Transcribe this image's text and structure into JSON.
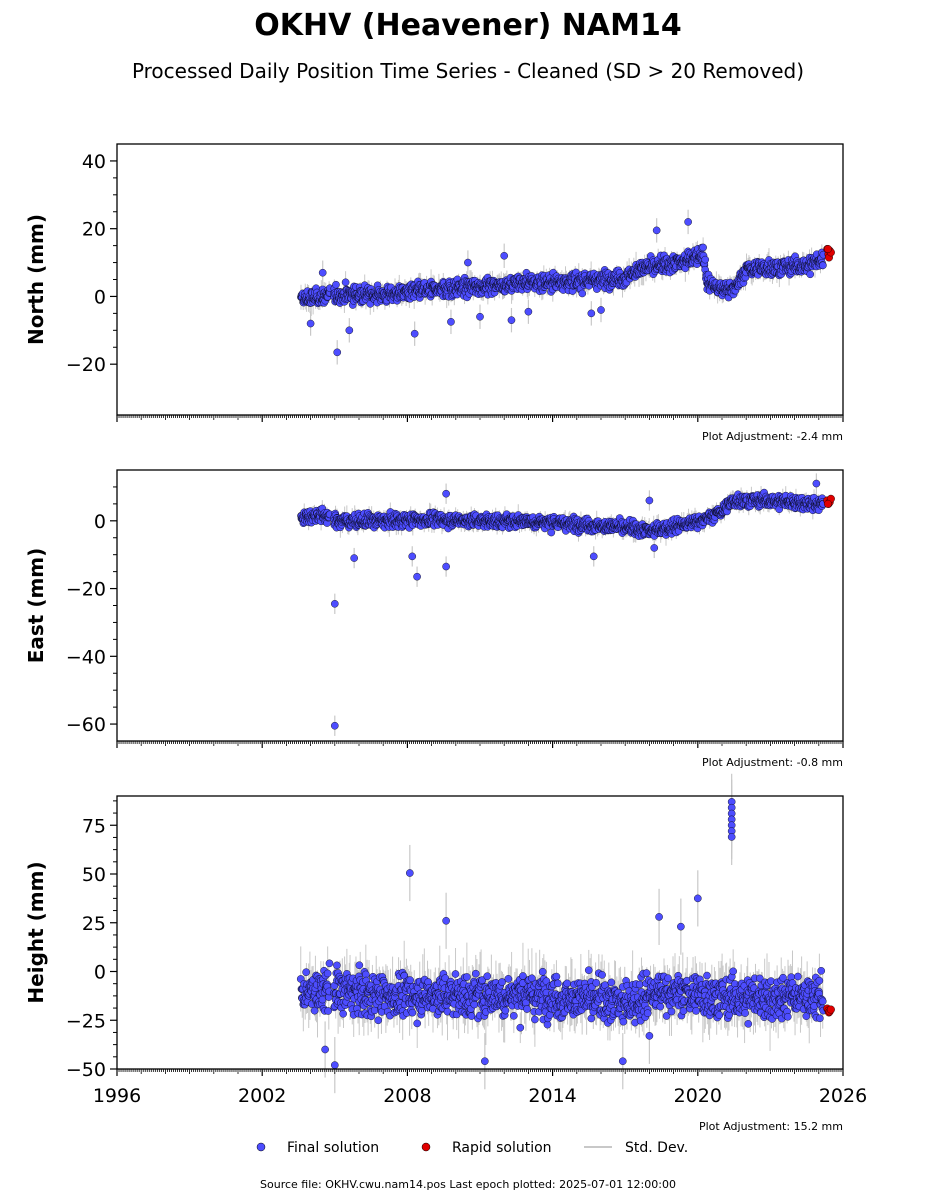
{
  "title": "OKHV (Heavener) NAM14",
  "subtitle": "Processed Daily Position Time Series - Cleaned (SD > 20 Removed)",
  "source_note": "Source file: OKHV.cwu.nam14.pos  Last epoch plotted: 2025-07-01 12:00:00",
  "legend": {
    "final": "Final solution",
    "rapid": "Rapid solution",
    "std": "Std. Dev."
  },
  "colors": {
    "final": "#4d4dff",
    "rapid": "#e00000",
    "std": "#c8c8c8",
    "edge": "#000000"
  },
  "chart_data": [
    {
      "type": "scatter",
      "ylabel": "North (mm)",
      "adjustment": "Plot Adjustment: -2.4 mm",
      "xlim": [
        1996,
        2026
      ],
      "ylim": [
        -35,
        45
      ],
      "yticks": [
        -20,
        0,
        20,
        40
      ],
      "ytick_labels": [
        "−20",
        "0",
        "20",
        "40"
      ],
      "series": [
        {
          "name": "Final solution",
          "trend": [
            [
              2003.6,
              -1
            ],
            [
              2005.0,
              0.5
            ],
            [
              2007.0,
              0.5
            ],
            [
              2009.0,
              2
            ],
            [
              2011.0,
              3
            ],
            [
              2013.0,
              4
            ],
            [
              2015.0,
              4.5
            ],
            [
              2017.0,
              5.5
            ],
            [
              2017.5,
              8
            ],
            [
              2018.5,
              9
            ],
            [
              2019.5,
              10.5
            ],
            [
              2020.2,
              13
            ],
            [
              2020.4,
              4
            ],
            [
              2021.0,
              2
            ],
            [
              2021.6,
              3
            ],
            [
              2022.0,
              8
            ],
            [
              2023.0,
              8.5
            ],
            [
              2024.5,
              9
            ],
            [
              2025.2,
              11
            ]
          ],
          "outliers": [
            [
              2005.1,
              -16.5
            ],
            [
              2005.6,
              -10
            ],
            [
              2008.3,
              -11
            ],
            [
              2009.8,
              -7.5
            ],
            [
              2012.3,
              -7
            ],
            [
              2013.0,
              -4.5
            ],
            [
              2015.6,
              -5
            ],
            [
              2016.0,
              -4
            ],
            [
              2018.3,
              19.5
            ],
            [
              2019.6,
              22
            ],
            [
              2010.5,
              10
            ],
            [
              2012.0,
              12
            ],
            [
              2011.0,
              -6
            ],
            [
              2004.0,
              -8
            ],
            [
              2004.5,
              7
            ]
          ]
        },
        {
          "name": "Rapid solution",
          "points": [
            [
              2025.35,
              14
            ],
            [
              2025.4,
              12.5
            ],
            [
              2025.42,
              11.5
            ],
            [
              2025.45,
              13.5
            ],
            [
              2025.5,
              13
            ],
            [
              2025.38,
              14
            ]
          ]
        }
      ]
    },
    {
      "type": "scatter",
      "ylabel": "East (mm)",
      "adjustment": "Plot Adjustment: -0.8 mm",
      "xlim": [
        1996,
        2026
      ],
      "ylim": [
        -65,
        15
      ],
      "yticks": [
        -60,
        -40,
        -20,
        0
      ],
      "ytick_labels": [
        "−60",
        "−40",
        "−20",
        "0"
      ],
      "series": [
        {
          "name": "Final solution",
          "trend": [
            [
              2003.6,
              1
            ],
            [
              2004.5,
              2
            ],
            [
              2005.0,
              0
            ],
            [
              2007.0,
              0
            ],
            [
              2009.0,
              0.5
            ],
            [
              2011.0,
              0
            ],
            [
              2013.0,
              0
            ],
            [
              2015.0,
              -1
            ],
            [
              2017.0,
              -2
            ],
            [
              2018.0,
              -3
            ],
            [
              2019.5,
              -1
            ],
            [
              2020.5,
              1
            ],
            [
              2021.0,
              3
            ],
            [
              2021.5,
              6
            ],
            [
              2022.5,
              6
            ],
            [
              2024.0,
              5.5
            ],
            [
              2025.2,
              5
            ]
          ],
          "outliers": [
            [
              2005.0,
              -24.5
            ],
            [
              2005.0,
              -60.5
            ],
            [
              2005.8,
              -11
            ],
            [
              2008.2,
              -10.5
            ],
            [
              2008.4,
              -16.5
            ],
            [
              2009.6,
              -13.5
            ],
            [
              2009.6,
              8
            ],
            [
              2015.7,
              -10.5
            ],
            [
              2018.0,
              6
            ],
            [
              2018.2,
              -8
            ],
            [
              2024.9,
              11
            ]
          ]
        },
        {
          "name": "Rapid solution",
          "points": [
            [
              2025.35,
              6
            ],
            [
              2025.4,
              5
            ],
            [
              2025.45,
              5.5
            ],
            [
              2025.5,
              6.5
            ],
            [
              2025.38,
              5
            ]
          ]
        }
      ]
    },
    {
      "type": "scatter",
      "ylabel": "Height (mm)",
      "adjustment": "Plot Adjustment: 15.2 mm",
      "xlim": [
        1996,
        2026
      ],
      "ylim": [
        -50,
        90
      ],
      "yticks": [
        -50,
        -25,
        0,
        25,
        50,
        75
      ],
      "ytick_labels": [
        "−50",
        "−25",
        "0",
        "25",
        "50",
        "75"
      ],
      "xticks": [
        1996,
        2002,
        2008,
        2014,
        2020,
        2026
      ],
      "xtick_labels": [
        "1996",
        "2002",
        "2008",
        "2014",
        "2020",
        "2026"
      ],
      "series": [
        {
          "name": "Final solution",
          "trend": [
            [
              2003.6,
              -10
            ],
            [
              2005.0,
              -10
            ],
            [
              2007.0,
              -12
            ],
            [
              2009.0,
              -12
            ],
            [
              2011.0,
              -12
            ],
            [
              2013.0,
              -12
            ],
            [
              2015.0,
              -14
            ],
            [
              2017.0,
              -16
            ],
            [
              2018.5,
              -10
            ],
            [
              2020.0,
              -12
            ],
            [
              2022.0,
              -14
            ],
            [
              2024.0,
              -12
            ],
            [
              2025.2,
              -14
            ]
          ],
          "outliers": [
            [
              2008.1,
              50.5
            ],
            [
              2009.6,
              26
            ],
            [
              2020.0,
              37.5
            ],
            [
              2021.4,
              87
            ],
            [
              2021.4,
              84
            ],
            [
              2021.4,
              81
            ],
            [
              2021.4,
              78
            ],
            [
              2021.4,
              75
            ],
            [
              2021.4,
              72
            ],
            [
              2021.4,
              69
            ],
            [
              2018.4,
              28
            ],
            [
              2019.3,
              23
            ],
            [
              2004.6,
              -40
            ],
            [
              2005.0,
              -48
            ],
            [
              2011.2,
              -46
            ],
            [
              2016.9,
              -46
            ],
            [
              2018.0,
              -33
            ]
          ]
        },
        {
          "name": "Rapid solution",
          "points": [
            [
              2025.35,
              -19
            ],
            [
              2025.4,
              -20
            ],
            [
              2025.42,
              -21
            ],
            [
              2025.45,
              -20.5
            ],
            [
              2025.5,
              -19.5
            ]
          ]
        }
      ]
    }
  ]
}
